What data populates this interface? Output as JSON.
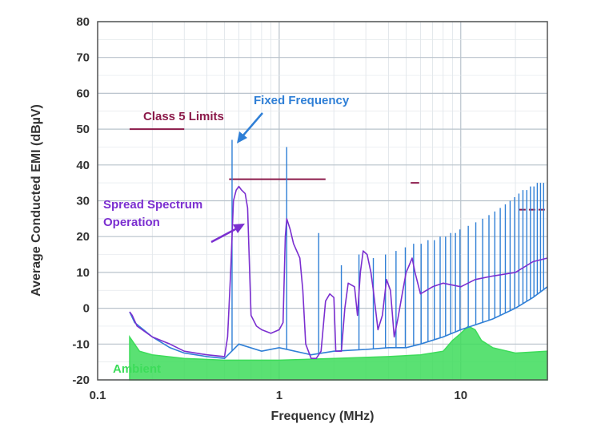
{
  "chart_data": {
    "type": "line",
    "xlabel": "Frequency (MHz)",
    "ylabel": "Average Conducted EMI (dBµV)",
    "x_scale": "log",
    "xlim": [
      0.1,
      30
    ],
    "ylim": [
      -20,
      80
    ],
    "x_ticks": [
      {
        "value": 0.1,
        "label": "0.1"
      },
      {
        "value": 1,
        "label": "1"
      },
      {
        "value": 10,
        "label": "10"
      }
    ],
    "y_ticks": [
      -20,
      -10,
      0,
      10,
      20,
      30,
      40,
      50,
      60,
      70,
      80
    ],
    "grid": true,
    "annotations": [
      {
        "text": "Class 5 Limits",
        "color": "#8b1a4a"
      },
      {
        "text": "Fixed Frequency",
        "color": "#2f7fd6"
      },
      {
        "text": "Spread Spectrum",
        "color": "#7b2fd0"
      },
      {
        "text": "Operation",
        "color": "#7b2fd0"
      },
      {
        "text": "Ambient",
        "color": "#3ddc5a"
      }
    ],
    "limits": [
      {
        "x": [
          0.15,
          0.3
        ],
        "y": 50
      },
      {
        "x": [
          0.53,
          1.8
        ],
        "y": 36
      },
      {
        "x": [
          5.3,
          5.9
        ],
        "y": 35
      },
      {
        "x": [
          21,
          30
        ],
        "y": 27.5
      }
    ],
    "series": [
      {
        "name": "Fixed Frequency",
        "color": "#2f7fd6",
        "baseline": [
          [
            0.15,
            -1
          ],
          [
            0.16,
            -4
          ],
          [
            0.2,
            -8
          ],
          [
            0.25,
            -11
          ],
          [
            0.3,
            -12.5
          ],
          [
            0.4,
            -13.5
          ],
          [
            0.5,
            -14
          ],
          [
            0.6,
            -10
          ],
          [
            0.8,
            -12
          ],
          [
            1,
            -11
          ],
          [
            1.5,
            -13
          ],
          [
            2,
            -12
          ],
          [
            3,
            -11.5
          ],
          [
            4,
            -11
          ],
          [
            5,
            -11
          ],
          [
            6,
            -10
          ],
          [
            8,
            -8
          ],
          [
            10,
            -6
          ],
          [
            15,
            -3
          ],
          [
            20,
            0
          ],
          [
            25,
            3
          ],
          [
            30,
            6
          ]
        ],
        "spikes": [
          [
            0.55,
            47
          ],
          [
            1.1,
            45
          ],
          [
            1.65,
            21
          ],
          [
            2.2,
            12
          ],
          [
            2.75,
            15
          ],
          [
            3.3,
            14
          ],
          [
            3.85,
            15
          ],
          [
            4.4,
            16
          ],
          [
            4.95,
            17
          ],
          [
            5.5,
            18
          ],
          [
            6.05,
            18
          ],
          [
            6.6,
            19
          ],
          [
            7.15,
            19
          ],
          [
            7.7,
            20
          ],
          [
            8.25,
            20
          ],
          [
            8.8,
            21
          ],
          [
            9.35,
            21
          ],
          [
            9.9,
            22
          ],
          [
            11,
            23
          ],
          [
            12.1,
            24
          ],
          [
            13.2,
            25
          ],
          [
            14.3,
            26
          ],
          [
            15.4,
            27
          ],
          [
            16.5,
            28
          ],
          [
            17.6,
            29
          ],
          [
            18.7,
            30
          ],
          [
            19.8,
            31
          ],
          [
            20.9,
            32
          ],
          [
            22,
            33
          ],
          [
            23.1,
            33
          ],
          [
            24.2,
            34
          ],
          [
            25.3,
            34
          ],
          [
            26.4,
            35
          ],
          [
            27.5,
            35
          ],
          [
            28.6,
            35
          ]
        ]
      },
      {
        "name": "Spread Spectrum Operation",
        "color": "#7b2fd0",
        "points": [
          [
            0.15,
            -1
          ],
          [
            0.155,
            -2
          ],
          [
            0.165,
            -5
          ],
          [
            0.2,
            -8
          ],
          [
            0.25,
            -10
          ],
          [
            0.3,
            -12
          ],
          [
            0.4,
            -13
          ],
          [
            0.5,
            -13.5
          ],
          [
            0.52,
            -8
          ],
          [
            0.54,
            10
          ],
          [
            0.56,
            30
          ],
          [
            0.58,
            33
          ],
          [
            0.6,
            34
          ],
          [
            0.62,
            33
          ],
          [
            0.65,
            32
          ],
          [
            0.67,
            28
          ],
          [
            0.7,
            -2
          ],
          [
            0.75,
            -5
          ],
          [
            0.8,
            -6
          ],
          [
            0.9,
            -7
          ],
          [
            1,
            -6
          ],
          [
            1.05,
            -4
          ],
          [
            1.08,
            20
          ],
          [
            1.1,
            25
          ],
          [
            1.15,
            22
          ],
          [
            1.2,
            18
          ],
          [
            1.3,
            14
          ],
          [
            1.35,
            5
          ],
          [
            1.4,
            -10
          ],
          [
            1.5,
            -14
          ],
          [
            1.6,
            -14
          ],
          [
            1.7,
            -12
          ],
          [
            1.75,
            -5
          ],
          [
            1.8,
            2
          ],
          [
            1.9,
            4
          ],
          [
            2,
            3
          ],
          [
            2.05,
            -12
          ],
          [
            2.2,
            -12
          ],
          [
            2.3,
            0
          ],
          [
            2.4,
            7
          ],
          [
            2.6,
            6
          ],
          [
            2.7,
            -2
          ],
          [
            2.8,
            10
          ],
          [
            2.9,
            16
          ],
          [
            3.05,
            15
          ],
          [
            3.2,
            10
          ],
          [
            3.3,
            5
          ],
          [
            3.5,
            -6
          ],
          [
            3.7,
            -2
          ],
          [
            3.9,
            8
          ],
          [
            4.1,
            5
          ],
          [
            4.3,
            -8
          ],
          [
            4.5,
            -3
          ],
          [
            4.8,
            5
          ],
          [
            5,
            10
          ],
          [
            5.2,
            12
          ],
          [
            5.4,
            14
          ],
          [
            5.6,
            10
          ],
          [
            6,
            4
          ],
          [
            7,
            6
          ],
          [
            8,
            7
          ],
          [
            10,
            6
          ],
          [
            12,
            8
          ],
          [
            15,
            9
          ],
          [
            20,
            10
          ],
          [
            25,
            13
          ],
          [
            30,
            14
          ]
        ]
      },
      {
        "name": "Ambient",
        "color": "#3ddc5a",
        "points": [
          [
            0.15,
            -8
          ],
          [
            0.17,
            -12
          ],
          [
            0.2,
            -13
          ],
          [
            0.3,
            -14
          ],
          [
            0.5,
            -14.5
          ],
          [
            1,
            -14.5
          ],
          [
            2,
            -14
          ],
          [
            4,
            -13.5
          ],
          [
            6,
            -13
          ],
          [
            8,
            -12
          ],
          [
            9,
            -9
          ],
          [
            10,
            -7
          ],
          [
            11,
            -5
          ],
          [
            12,
            -6
          ],
          [
            13,
            -9
          ],
          [
            15,
            -11
          ],
          [
            20,
            -12.5
          ],
          [
            30,
            -12
          ]
        ]
      }
    ]
  }
}
